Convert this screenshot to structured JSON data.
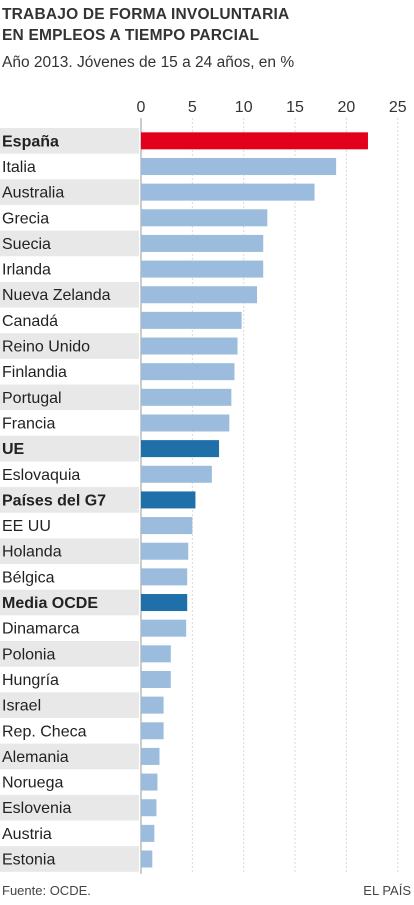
{
  "header": {
    "title_line1": "TRABAJO DE FORMA INVOLUNTARIA",
    "title_line2": "EN EMPLEOS A TIEMPO PARCIAL",
    "subtitle": "Año 2013. Jóvenes de 15 a 24 años, en %"
  },
  "footer": {
    "source": "Fuente: OCDE.",
    "credit": "EL PAÍS"
  },
  "colors": {
    "highlight": "#e2001a",
    "aggregate": "#1f6fa8",
    "default": "#9bbcdc",
    "stripe": "#e8e8e8"
  },
  "chart_data": {
    "type": "bar",
    "orientation": "horizontal",
    "xlim": [
      0,
      25
    ],
    "ticks": [
      "0",
      "5",
      "10",
      "15",
      "20",
      "25"
    ],
    "tick_values": [
      0,
      5,
      10,
      15,
      20,
      25
    ],
    "grid": true,
    "categories": [
      "España",
      "Italia",
      "Australia",
      "Grecia",
      "Suecia",
      "Irlanda",
      "Nueva Zelanda",
      "Canadá",
      "Reino Unido",
      "Finlandia",
      "Portugal",
      "Francia",
      "UE",
      "Eslovaquia",
      "Países del G7",
      "EE UU",
      "Holanda",
      "Bélgica",
      "Media OCDE",
      "Dinamarca",
      "Polonia",
      "Hungría",
      "Israel",
      "Rep. Checa",
      "Alemania",
      "Noruega",
      "Eslovenia",
      "Austria",
      "Estonia"
    ],
    "values": [
      22.1,
      19.0,
      16.9,
      12.3,
      11.9,
      11.9,
      11.3,
      9.8,
      9.4,
      9.1,
      8.8,
      8.6,
      7.6,
      6.9,
      5.3,
      5.0,
      4.6,
      4.5,
      4.5,
      4.4,
      2.9,
      2.9,
      2.2,
      2.2,
      1.8,
      1.6,
      1.5,
      1.3,
      1.1
    ],
    "bold": [
      true,
      false,
      false,
      false,
      false,
      false,
      false,
      false,
      false,
      false,
      false,
      false,
      true,
      false,
      true,
      false,
      false,
      false,
      true,
      false,
      false,
      false,
      false,
      false,
      false,
      false,
      false,
      false,
      false
    ],
    "bar_style": [
      "highlight",
      "default",
      "default",
      "default",
      "default",
      "default",
      "default",
      "default",
      "default",
      "default",
      "default",
      "default",
      "aggregate",
      "default",
      "aggregate",
      "default",
      "default",
      "default",
      "aggregate",
      "default",
      "default",
      "default",
      "default",
      "default",
      "default",
      "default",
      "default",
      "default",
      "default"
    ]
  }
}
